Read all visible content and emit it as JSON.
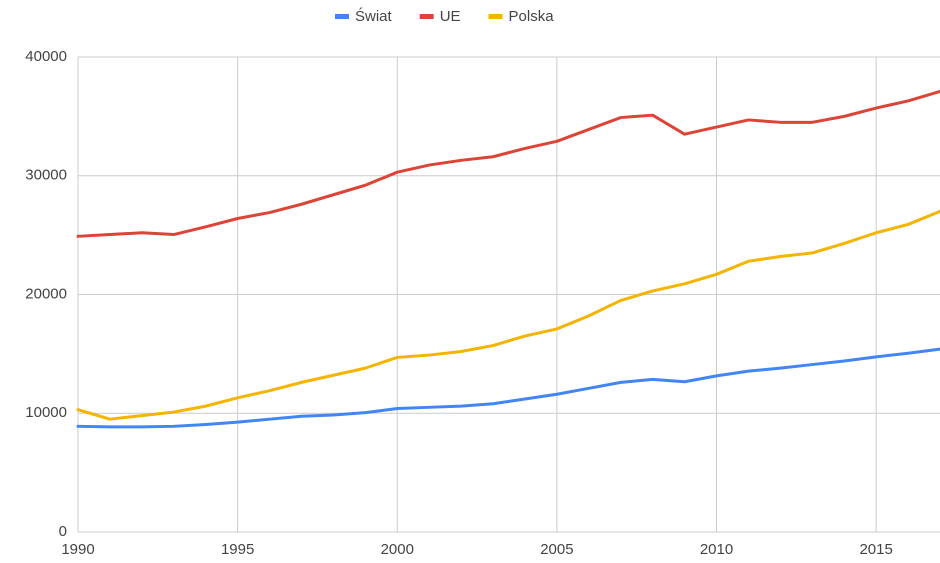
{
  "chart_data": {
    "type": "line",
    "x": [
      1990,
      1991,
      1992,
      1993,
      1994,
      1995,
      1996,
      1997,
      1998,
      1999,
      2000,
      2001,
      2002,
      2003,
      2004,
      2005,
      2006,
      2007,
      2008,
      2009,
      2010,
      2011,
      2012,
      2013,
      2014,
      2015,
      2016,
      2017
    ],
    "series": [
      {
        "name": "Świat",
        "color": "#4285f4",
        "values": [
          8900,
          8850,
          8850,
          8900,
          9050,
          9250,
          9500,
          9750,
          9850,
          10050,
          10400,
          10500,
          10600,
          10800,
          11200,
          11600,
          12100,
          12600,
          12850,
          12650,
          13150,
          13550,
          13800,
          14100,
          14400,
          14750,
          15050,
          15400
        ]
      },
      {
        "name": "UE",
        "color": "#db4437",
        "values": [
          24900,
          25050,
          25200,
          25050,
          25700,
          26400,
          26900,
          27600,
          28400,
          29200,
          30300,
          30900,
          31300,
          31600,
          32300,
          32900,
          33900,
          34900,
          35100,
          33500,
          34100,
          34700,
          34500,
          34500,
          35000,
          35700,
          36300,
          37100
        ]
      },
      {
        "name": "Polska",
        "color": "#f4b400",
        "values": [
          10300,
          9500,
          9800,
          10100,
          10600,
          11300,
          11900,
          12600,
          13200,
          13800,
          14700,
          14900,
          15200,
          15700,
          16500,
          17100,
          18200,
          19500,
          20300,
          20900,
          21700,
          22800,
          23200,
          23500,
          24300,
          25200,
          25900,
          27000
        ]
      }
    ],
    "xlim": [
      1990,
      2017
    ],
    "xticks": [
      1990,
      1995,
      2000,
      2005,
      2010,
      2015
    ],
    "ylim": [
      0,
      40000
    ],
    "yticks": [
      0,
      10000,
      20000,
      30000,
      40000
    ],
    "grid": true,
    "legend": "top"
  }
}
